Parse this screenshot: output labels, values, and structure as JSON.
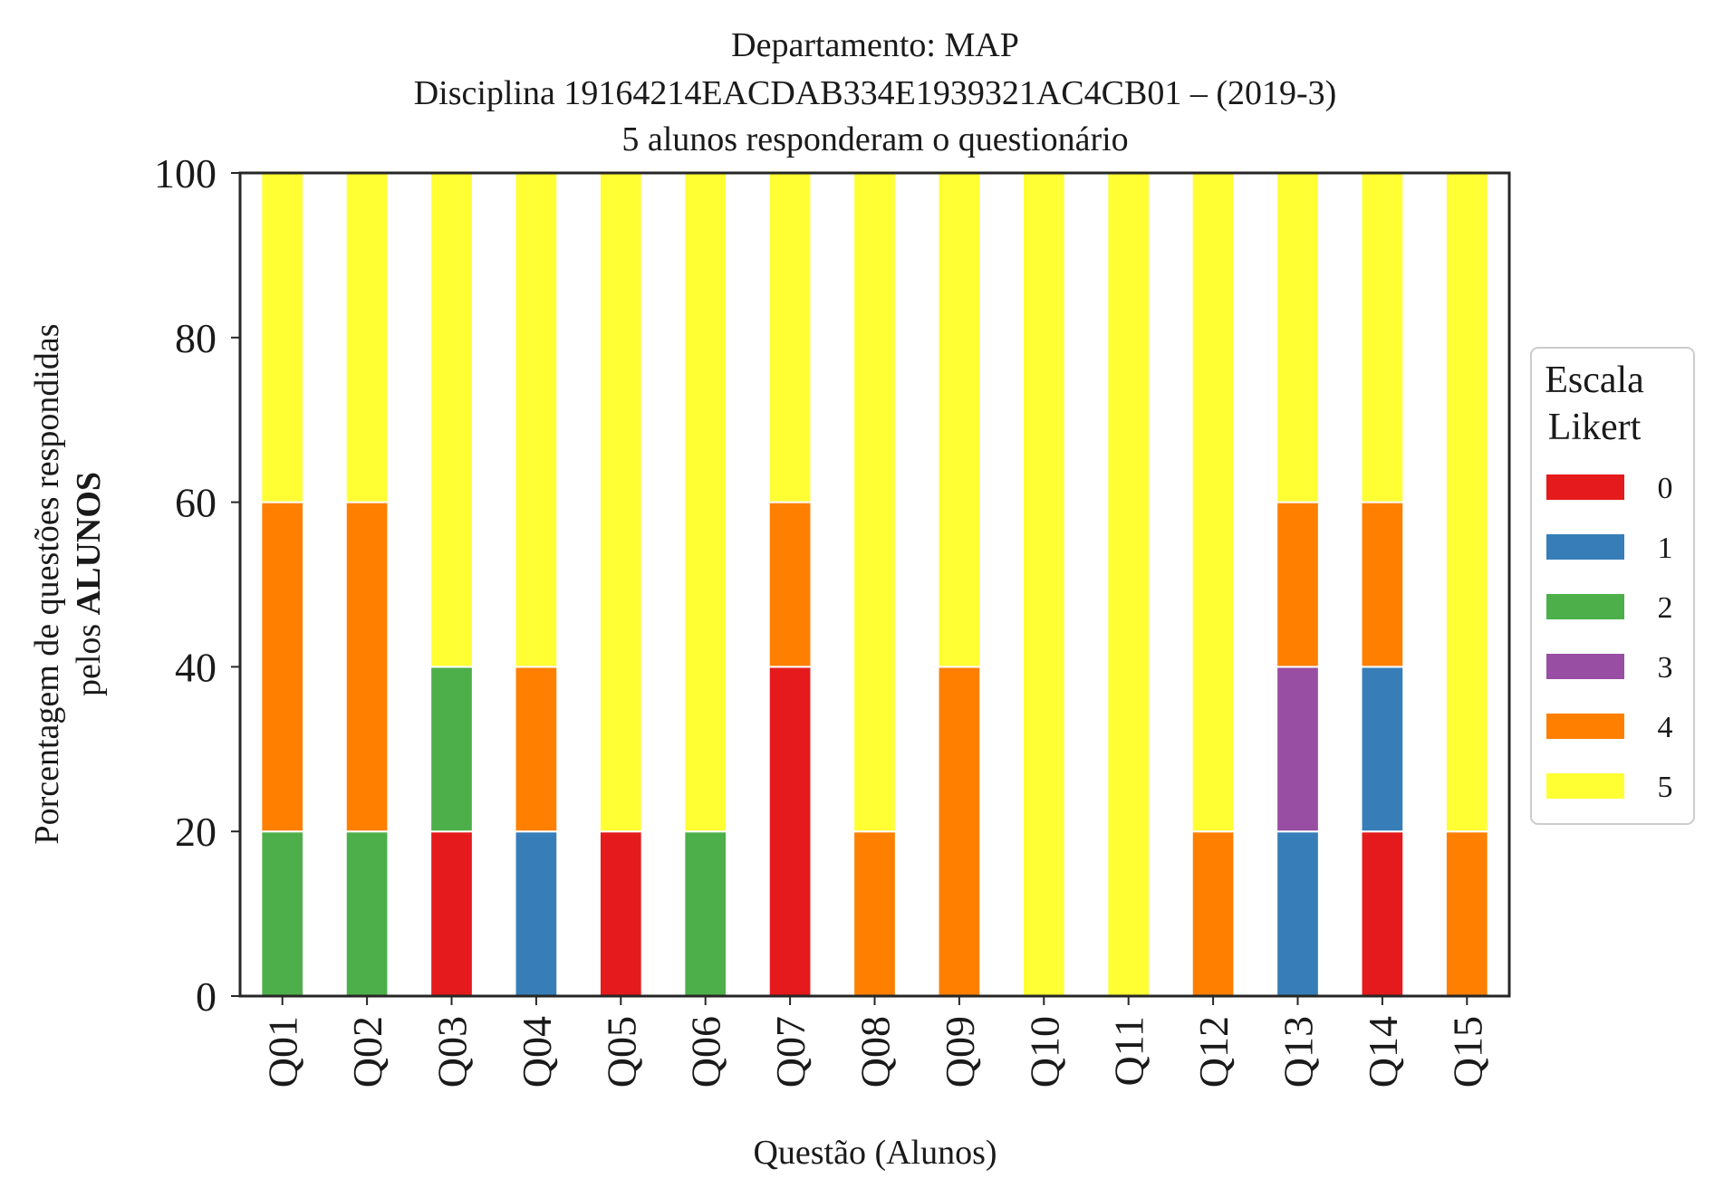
{
  "chart_data": {
    "type": "bar",
    "stacked": true,
    "title_lines": [
      "Departamento: MAP",
      "Disciplina 19164214EACDAB334E1939321AC4CB01 – (2019-3)",
      "5 alunos responderam o questionário"
    ],
    "xlabel": "Questão (Alunos)",
    "ylabel_line1": "Porcentagem de questões respondidas",
    "ylabel_line2_prefix": "pelos ",
    "ylabel_line2_bold": "ALUNOS",
    "ylim": [
      0,
      100
    ],
    "yticks": [
      0,
      20,
      40,
      60,
      80,
      100
    ],
    "categories": [
      "Q01",
      "Q02",
      "Q03",
      "Q04",
      "Q05",
      "Q06",
      "Q07",
      "Q08",
      "Q09",
      "Q10",
      "Q11",
      "Q12",
      "Q13",
      "Q14",
      "Q15"
    ],
    "series": [
      {
        "name": "0",
        "color": "#e41a1c",
        "values": [
          0,
          0,
          20,
          0,
          20,
          0,
          40,
          0,
          0,
          0,
          0,
          0,
          0,
          20,
          0
        ]
      },
      {
        "name": "1",
        "color": "#377eb8",
        "values": [
          0,
          0,
          0,
          20,
          0,
          0,
          0,
          0,
          0,
          0,
          0,
          0,
          20,
          20,
          0
        ]
      },
      {
        "name": "2",
        "color": "#4daf4a",
        "values": [
          20,
          20,
          20,
          0,
          0,
          20,
          0,
          0,
          0,
          0,
          0,
          0,
          0,
          0,
          0
        ]
      },
      {
        "name": "3",
        "color": "#984ea3",
        "values": [
          0,
          0,
          0,
          0,
          0,
          0,
          0,
          0,
          0,
          0,
          0,
          0,
          20,
          0,
          0
        ]
      },
      {
        "name": "4",
        "color": "#ff7f00",
        "values": [
          40,
          40,
          0,
          20,
          0,
          0,
          20,
          20,
          40,
          0,
          0,
          20,
          20,
          20,
          20
        ]
      },
      {
        "name": "5",
        "color": "#ffff33",
        "values": [
          40,
          40,
          60,
          60,
          80,
          80,
          40,
          80,
          60,
          100,
          100,
          80,
          40,
          40,
          80
        ]
      }
    ],
    "legend": {
      "title_lines": [
        "Escala",
        "Likert"
      ],
      "placement": "right-outside"
    },
    "grid": false
  }
}
